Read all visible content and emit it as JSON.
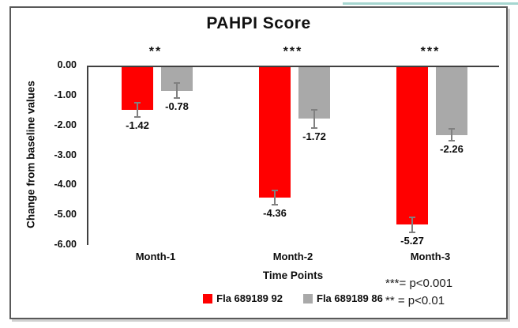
{
  "window": {
    "accent_line_color": "#a6d6d0",
    "frame_border_color": "#595959",
    "axis_color": "#404040",
    "error_bar_color": "#808080",
    "text_color": "#0d0d0d"
  },
  "chart_data": {
    "type": "bar",
    "title": "PAHPI Score",
    "xlabel": "Time Points",
    "ylabel": "Change from baseline values",
    "categories": [
      "Month-1",
      "Month-2",
      "Month-3"
    ],
    "series": [
      {
        "name": "Fla 689189 92",
        "color": "#ff0000",
        "values": [
          -1.42,
          -4.36,
          -5.27
        ],
        "labels": [
          "-1.42",
          "-4.36",
          "-5.27"
        ],
        "errors": [
          0.27,
          0.27,
          0.27
        ]
      },
      {
        "name": "Fla 689189 86",
        "color": "#a9a9a9",
        "values": [
          -0.78,
          -1.72,
          -2.26
        ],
        "labels": [
          "-0.78",
          "-1.72",
          "-2.26"
        ],
        "errors": [
          0.27,
          0.33,
          0.22
        ]
      }
    ],
    "significance": [
      "**",
      "***",
      "***"
    ],
    "ylim": [
      -6,
      0
    ],
    "ytick_step": 1,
    "ytick_labels": [
      "0.00",
      "-1.00",
      "-2.00",
      "-3.00",
      "-4.00",
      "-5.00",
      "-6.00"
    ],
    "grid": "off",
    "legend_position": "bottom",
    "annotations": [
      "***= p<0.001",
      "** = p<0.01"
    ]
  }
}
